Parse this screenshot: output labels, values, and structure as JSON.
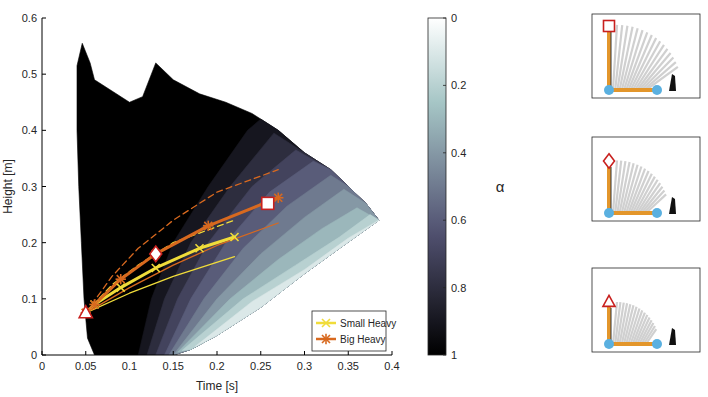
{
  "chart_data": {
    "type": "line",
    "xlabel": "Time [s]",
    "ylabel": "Height [m]",
    "xlim": [
      0,
      0.4
    ],
    "ylim": [
      0,
      0.6
    ],
    "xticks": [
      0,
      0.05,
      0.1,
      0.15,
      0.2,
      0.25,
      0.3,
      0.35,
      0.4
    ],
    "yticks": [
      0,
      0.1,
      0.2,
      0.3,
      0.4,
      0.5,
      0.6
    ],
    "legend": "lower right",
    "colorbar": {
      "label": "α",
      "lim": [
        0,
        1
      ],
      "ticks": [
        0,
        0.2,
        0.4,
        0.6,
        0.8,
        1
      ]
    },
    "contour": [
      {
        "alpha": 1,
        "x": [
          0.04,
          0.046,
          0.055,
          0.06,
          0.08,
          0.1,
          0.115,
          0.13,
          0.15,
          0.18,
          0.21,
          0.24,
          0.27,
          0.3,
          0.33,
          0.35,
          0.37,
          0.385,
          0.34,
          0.3,
          0.25,
          0.2,
          0.17,
          0.15,
          0.06,
          0.052,
          0.048,
          0.045,
          0.042,
          0.04
        ],
        "y": [
          0.515,
          0.555,
          0.52,
          0.49,
          0.47,
          0.45,
          0.46,
          0.52,
          0.49,
          0.465,
          0.45,
          0.43,
          0.4,
          0.36,
          0.33,
          0.3,
          0.27,
          0.24,
          0.19,
          0.145,
          0.085,
          0.035,
          0.01,
          0,
          0,
          0.03,
          0.1,
          0.2,
          0.3,
          0.4
        ]
      },
      {
        "alpha": 0.9,
        "x": [
          0.11,
          0.125,
          0.15,
          0.19,
          0.235,
          0.25,
          0.27,
          0.3,
          0.33,
          0.35,
          0.37,
          0.385,
          0.34,
          0.3,
          0.25,
          0.2,
          0.17,
          0.15
        ],
        "y": [
          0,
          0.1,
          0.2,
          0.3,
          0.4,
          0.42,
          0.4,
          0.36,
          0.33,
          0.3,
          0.27,
          0.24,
          0.19,
          0.145,
          0.085,
          0.035,
          0.01,
          0
        ]
      },
      {
        "alpha": 0.8,
        "x": [
          0.12,
          0.14,
          0.17,
          0.215,
          0.265,
          0.3,
          0.33,
          0.35,
          0.37,
          0.385,
          0.34,
          0.3,
          0.25,
          0.2,
          0.17,
          0.15
        ],
        "y": [
          0,
          0.1,
          0.2,
          0.3,
          0.395,
          0.36,
          0.33,
          0.3,
          0.27,
          0.24,
          0.19,
          0.145,
          0.085,
          0.035,
          0.01,
          0
        ]
      },
      {
        "alpha": 0.7,
        "x": [
          0.13,
          0.155,
          0.19,
          0.24,
          0.29,
          0.33,
          0.35,
          0.37,
          0.385,
          0.34,
          0.3,
          0.25,
          0.2,
          0.17,
          0.15
        ],
        "y": [
          0,
          0.1,
          0.2,
          0.3,
          0.365,
          0.33,
          0.3,
          0.27,
          0.24,
          0.19,
          0.145,
          0.085,
          0.035,
          0.01,
          0
        ]
      },
      {
        "alpha": 0.6,
        "x": [
          0.14,
          0.17,
          0.21,
          0.26,
          0.31,
          0.33,
          0.35,
          0.37,
          0.385,
          0.34,
          0.3,
          0.25,
          0.2,
          0.17,
          0.15
        ],
        "y": [
          0,
          0.1,
          0.2,
          0.29,
          0.345,
          0.33,
          0.3,
          0.27,
          0.24,
          0.19,
          0.145,
          0.085,
          0.035,
          0.01,
          0
        ]
      },
      {
        "alpha": 0.5,
        "x": [
          0.145,
          0.185,
          0.23,
          0.28,
          0.33,
          0.35,
          0.37,
          0.385,
          0.34,
          0.3,
          0.25,
          0.2,
          0.17,
          0.15
        ],
        "y": [
          0,
          0.1,
          0.19,
          0.265,
          0.32,
          0.3,
          0.27,
          0.24,
          0.19,
          0.145,
          0.085,
          0.035,
          0.01,
          0
        ]
      },
      {
        "alpha": 0.4,
        "x": [
          0.15,
          0.2,
          0.25,
          0.3,
          0.345,
          0.37,
          0.385,
          0.34,
          0.3,
          0.25,
          0.2,
          0.17
        ],
        "y": [
          0,
          0.1,
          0.18,
          0.245,
          0.295,
          0.27,
          0.24,
          0.19,
          0.145,
          0.085,
          0.035,
          0.01
        ]
      },
      {
        "alpha": 0.3,
        "x": [
          0.155,
          0.215,
          0.27,
          0.32,
          0.36,
          0.385,
          0.34,
          0.3,
          0.25,
          0.2,
          0.17
        ],
        "y": [
          0.005,
          0.1,
          0.17,
          0.225,
          0.262,
          0.24,
          0.19,
          0.145,
          0.085,
          0.035,
          0.01
        ]
      },
      {
        "alpha": 0.2,
        "x": [
          0.16,
          0.23,
          0.29,
          0.34,
          0.375,
          0.385,
          0.34,
          0.3,
          0.25,
          0.2,
          0.17
        ],
        "y": [
          0.008,
          0.1,
          0.16,
          0.21,
          0.25,
          0.24,
          0.19,
          0.145,
          0.085,
          0.035,
          0.01
        ]
      },
      {
        "alpha": 0.1,
        "x": [
          0.175,
          0.24,
          0.3,
          0.35,
          0.385,
          0.34,
          0.3,
          0.25,
          0.2
        ],
        "y": [
          0.015,
          0.095,
          0.152,
          0.208,
          0.24,
          0.19,
          0.145,
          0.085,
          0.035
        ]
      }
    ],
    "series": [
      {
        "color": "#f0dc3a",
        "line_style": "dashed",
        "x": [
          0.05,
          0.08,
          0.11,
          0.15,
          0.22
        ],
        "values": [
          0.075,
          0.125,
          0.16,
          0.2,
          0.24
        ]
      },
      {
        "name": "Small Heavy",
        "color": "#f0dc3a",
        "line_style": "solid",
        "marker": "x",
        "x": [
          0.05,
          0.06,
          0.09,
          0.13,
          0.18,
          0.22
        ],
        "values": [
          0.075,
          0.09,
          0.12,
          0.155,
          0.19,
          0.21
        ]
      },
      {
        "color": "#f0dc3a",
        "line_style": "solid",
        "x": [
          0.05,
          0.1,
          0.15,
          0.22
        ],
        "values": [
          0.075,
          0.11,
          0.14,
          0.175
        ]
      },
      {
        "color": "#d8691f",
        "line_style": "dashed",
        "x": [
          0.05,
          0.08,
          0.11,
          0.15,
          0.2,
          0.27
        ],
        "values": [
          0.075,
          0.14,
          0.19,
          0.24,
          0.29,
          0.33
        ]
      },
      {
        "name": "Big Heavy",
        "color": "#d8691f",
        "line_style": "solid",
        "marker": "asterisk",
        "x": [
          0.05,
          0.06,
          0.09,
          0.13,
          0.19,
          0.27
        ],
        "values": [
          0.075,
          0.09,
          0.135,
          0.18,
          0.23,
          0.28
        ]
      },
      {
        "color": "#d8691f",
        "line_style": "solid",
        "x": [
          0.05,
          0.1,
          0.15,
          0.2,
          0.27
        ],
        "values": [
          0.075,
          0.12,
          0.16,
          0.195,
          0.235
        ]
      },
      {
        "type": "scatter",
        "color": "#c8201e",
        "marker": "square",
        "x": [
          0.258
        ],
        "values": [
          0.27
        ]
      },
      {
        "type": "scatter",
        "color": "#c8201e",
        "marker": "diamond",
        "x": [
          0.13
        ],
        "values": [
          0.18
        ]
      },
      {
        "type": "scatter",
        "color": "#c8201e",
        "marker": "triangle",
        "x": [
          0.05
        ],
        "values": [
          0.075
        ]
      }
    ]
  }
}
